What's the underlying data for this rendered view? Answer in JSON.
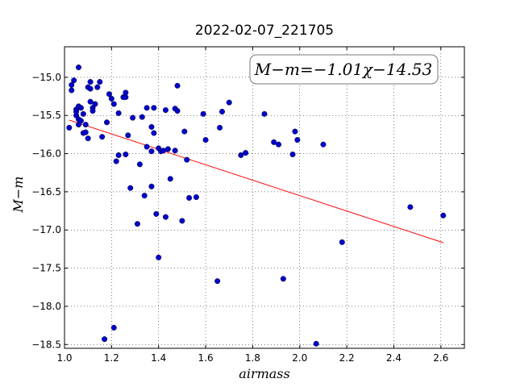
{
  "chart_data": {
    "type": "scatter",
    "title": "2022-02-07_221705",
    "xlabel": "airmass",
    "ylabel": "M−m",
    "annotation": "M−m=−1.01χ−14.53",
    "xlim": [
      1.0,
      2.7
    ],
    "ylim": [
      -18.55,
      -14.6
    ],
    "grid": true,
    "x_ticks": [
      1.0,
      1.2,
      1.4,
      1.6,
      1.8,
      2.0,
      2.2,
      2.4,
      2.6
    ],
    "x_tick_labels": [
      "1.0",
      "1.2",
      "1.4",
      "1.6",
      "1.8",
      "2.0",
      "2.2",
      "2.4",
      "2.6"
    ],
    "y_ticks": [
      -15.0,
      -15.5,
      -16.0,
      -16.5,
      -17.0,
      -17.5,
      -18.0,
      -18.5
    ],
    "y_tick_labels": [
      "−15.0",
      "−15.5",
      "−16.0",
      "−16.5",
      "−17.0",
      "−17.5",
      "−18.0",
      "−18.5"
    ],
    "point_color": "#0000cc",
    "fit_color": "#ff0000",
    "fit": {
      "slope": -1.01,
      "intercept": -14.53,
      "x": [
        1.02,
        2.61
      ]
    },
    "series": [
      {
        "points": [
          [
            1.02,
            -15.66
          ],
          [
            1.03,
            -15.1
          ],
          [
            1.03,
            -15.17
          ],
          [
            1.04,
            -15.04
          ],
          [
            1.05,
            -15.42
          ],
          [
            1.05,
            -15.5
          ],
          [
            1.05,
            -15.45
          ],
          [
            1.06,
            -14.87
          ],
          [
            1.06,
            -15.38
          ],
          [
            1.06,
            -15.55
          ],
          [
            1.06,
            -15.62
          ],
          [
            1.07,
            -15.4
          ],
          [
            1.07,
            -15.57
          ],
          [
            1.08,
            -15.48
          ],
          [
            1.08,
            -15.73
          ],
          [
            1.09,
            -15.72
          ],
          [
            1.09,
            -15.62
          ],
          [
            1.1,
            -15.13
          ],
          [
            1.1,
            -15.8
          ],
          [
            1.11,
            -15.15
          ],
          [
            1.11,
            -15.32
          ],
          [
            1.11,
            -15.06
          ],
          [
            1.12,
            -15.4
          ],
          [
            1.12,
            -15.44
          ],
          [
            1.13,
            -15.35
          ],
          [
            1.14,
            -15.13
          ],
          [
            1.15,
            -15.06
          ],
          [
            1.16,
            -15.78
          ],
          [
            1.17,
            -18.43
          ],
          [
            1.18,
            -15.59
          ],
          [
            1.19,
            -15.22
          ],
          [
            1.2,
            -15.28
          ],
          [
            1.21,
            -15.35
          ],
          [
            1.21,
            -18.28
          ],
          [
            1.22,
            -16.1
          ],
          [
            1.23,
            -16.02
          ],
          [
            1.23,
            -15.47
          ],
          [
            1.25,
            -15.26
          ],
          [
            1.26,
            -15.2
          ],
          [
            1.26,
            -15.26
          ],
          [
            1.26,
            -16.01
          ],
          [
            1.27,
            -15.76
          ],
          [
            1.28,
            -16.45
          ],
          [
            1.29,
            -15.53
          ],
          [
            1.31,
            -16.92
          ],
          [
            1.32,
            -16.14
          ],
          [
            1.33,
            -15.52
          ],
          [
            1.34,
            -16.55
          ],
          [
            1.35,
            -15.4
          ],
          [
            1.35,
            -15.91
          ],
          [
            1.37,
            -15.65
          ],
          [
            1.37,
            -16.43
          ],
          [
            1.37,
            -15.97
          ],
          [
            1.38,
            -15.4
          ],
          [
            1.38,
            -15.73
          ],
          [
            1.39,
            -16.79
          ],
          [
            1.4,
            -17.36
          ],
          [
            1.4,
            -15.93
          ],
          [
            1.41,
            -15.97
          ],
          [
            1.42,
            -15.96
          ],
          [
            1.43,
            -15.43
          ],
          [
            1.43,
            -16.83
          ],
          [
            1.44,
            -15.94
          ],
          [
            1.45,
            -16.33
          ],
          [
            1.47,
            -15.96
          ],
          [
            1.47,
            -15.41
          ],
          [
            1.48,
            -15.44
          ],
          [
            1.48,
            -15.11
          ],
          [
            1.5,
            -16.88
          ],
          [
            1.51,
            -15.71
          ],
          [
            1.52,
            -16.08
          ],
          [
            1.53,
            -16.58
          ],
          [
            1.56,
            -16.57
          ],
          [
            1.59,
            -15.48
          ],
          [
            1.6,
            -15.82
          ],
          [
            1.65,
            -17.67
          ],
          [
            1.66,
            -15.66
          ],
          [
            1.67,
            -15.45
          ],
          [
            1.7,
            -15.33
          ],
          [
            1.75,
            -16.02
          ],
          [
            1.77,
            -15.99
          ],
          [
            1.85,
            -15.48
          ],
          [
            1.89,
            -15.85
          ],
          [
            1.91,
            -15.88
          ],
          [
            1.93,
            -17.64
          ],
          [
            1.97,
            -16.01
          ],
          [
            1.98,
            -15.71
          ],
          [
            1.99,
            -15.82
          ],
          [
            2.07,
            -18.49
          ],
          [
            2.1,
            -15.88
          ],
          [
            2.18,
            -17.16
          ],
          [
            2.47,
            -16.7
          ],
          [
            2.61,
            -16.81
          ]
        ]
      }
    ]
  }
}
